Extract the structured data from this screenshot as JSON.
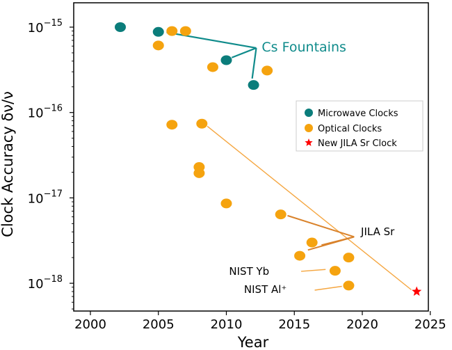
{
  "colors": {
    "microwave": "#0b7d7b",
    "optical": "#f5a30f",
    "optical_line": "#f5a640",
    "jila_line": "#d9822b",
    "new_clock": "#ff0000",
    "cs_annotation": "#0f8b8b"
  },
  "chart_data": {
    "type": "scatter",
    "xlabel": "Year",
    "ylabel": "Clock Accuracy δν/ν",
    "xlim": [
      1999,
      2025
    ],
    "ylim": [
      5e-19,
      2e-15
    ],
    "yscale": "log",
    "x_ticks": [
      2000,
      2005,
      2010,
      2015,
      2020,
      2025
    ],
    "y_ticks": [
      {
        "value": 1e-15,
        "base": "10",
        "exp": "−15"
      },
      {
        "value": 1e-16,
        "base": "10",
        "exp": "−16"
      },
      {
        "value": 1e-17,
        "base": "10",
        "exp": "−17"
      },
      {
        "value": 1e-18,
        "base": "10",
        "exp": "−18"
      }
    ],
    "legend_position": "right",
    "series": [
      {
        "name": "Microwave Clocks",
        "marker": "circle",
        "points": [
          {
            "x": 2002.2,
            "y": 1e-15
          },
          {
            "x": 2005.0,
            "y": 8.8e-16
          },
          {
            "x": 2010.0,
            "y": 4.1e-16
          },
          {
            "x": 2012.0,
            "y": 2.1e-16
          }
        ]
      },
      {
        "name": "Optical Clocks",
        "marker": "circle",
        "points": [
          {
            "x": 2006.0,
            "y": 9e-16
          },
          {
            "x": 2007.0,
            "y": 9e-16
          },
          {
            "x": 2005.0,
            "y": 6.1e-16
          },
          {
            "x": 2009.0,
            "y": 3.4e-16
          },
          {
            "x": 2013.0,
            "y": 3.1e-16
          },
          {
            "x": 2006.0,
            "y": 7.2e-17
          },
          {
            "x": 2008.2,
            "y": 7.4e-17
          },
          {
            "x": 2008.0,
            "y": 2.3e-17
          },
          {
            "x": 2008.0,
            "y": 1.95e-17
          },
          {
            "x": 2010.0,
            "y": 8.6e-18
          },
          {
            "x": 2014.0,
            "y": 6.4e-18
          },
          {
            "x": 2016.3,
            "y": 3e-18
          },
          {
            "x": 2015.4,
            "y": 2.1e-18
          },
          {
            "x": 2019.0,
            "y": 2e-18
          },
          {
            "x": 2018.0,
            "y": 1.4e-18
          },
          {
            "x": 2019.0,
            "y": 9.4e-19
          }
        ]
      },
      {
        "name": "New JILA Sr Clock",
        "marker": "star",
        "points": [
          {
            "x": 2024.0,
            "y": 8e-19
          }
        ]
      }
    ],
    "trend_line": {
      "from": {
        "x": 2008.6,
        "y": 6.9e-17
      },
      "to": {
        "x": 2023.6,
        "y": 8.4e-19
      }
    },
    "annotations": [
      {
        "text": "Cs Fountains",
        "label_at": {
          "x": 2012.4,
          "y": 5.9e-16
        },
        "hub": {
          "x": 2012.2,
          "y": 5.7e-16
        },
        "pointers": [
          {
            "x": 2005.6,
            "y": 8.7e-16
          },
          {
            "x": 2010.4,
            "y": 4.4e-16
          },
          {
            "x": 2011.9,
            "y": 2.5e-16
          }
        ]
      },
      {
        "text": "JILA Sr",
        "label_at": {
          "x": 2019.9,
          "y": 4.1e-18
        },
        "hub": {
          "x": 2019.4,
          "y": 3.5e-18
        },
        "pointers": [
          {
            "x": 2014.5,
            "y": 6.2e-18
          },
          {
            "x": 2016.0,
            "y": 2.45e-18
          },
          {
            "x": 2017.0,
            "y": 2.8e-18
          }
        ]
      },
      {
        "text": "NIST Yb",
        "label_at": {
          "x": 2010.2,
          "y": 1.4e-18
        },
        "pointers": [
          {
            "x": 2015.5,
            "y": 1.38e-18
          },
          {
            "x": 2017.3,
            "y": 1.45e-18
          }
        ]
      },
      {
        "text": "NIST Al⁺",
        "label_at": {
          "x": 2011.3,
          "y": 8.6e-19
        },
        "pointers": [
          {
            "x": 2016.5,
            "y": 8.3e-19
          },
          {
            "x": 2018.5,
            "y": 9.2e-19
          }
        ]
      }
    ]
  }
}
